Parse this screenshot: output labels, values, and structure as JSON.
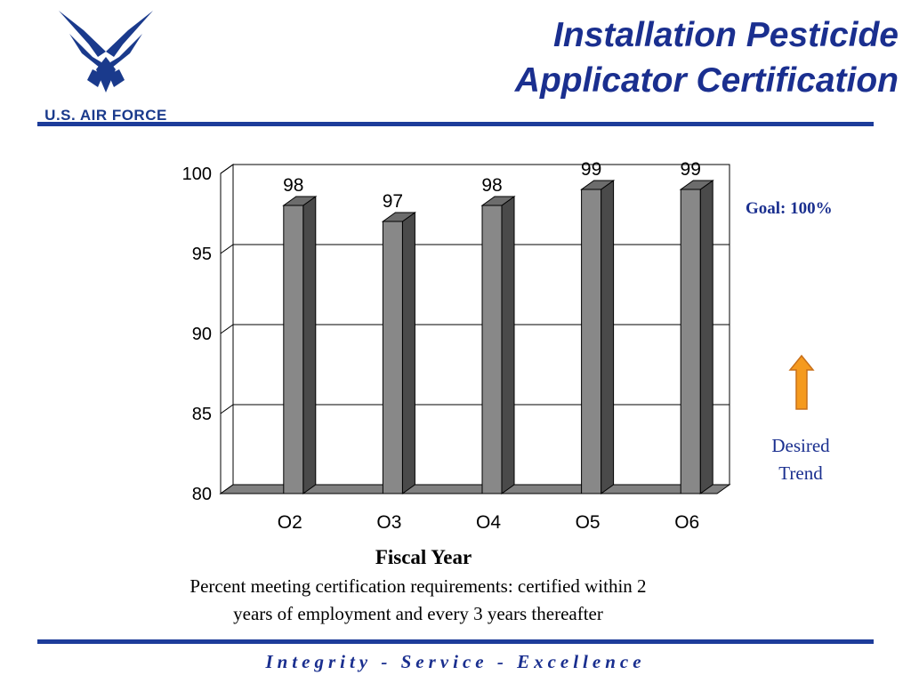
{
  "logo": {
    "text": "U.S. AIR FORCE",
    "icon": "air-force-wings-symbol",
    "color": "#1a3a8c"
  },
  "title": {
    "line1": "Installation Pesticide",
    "line2": "Applicator Certification"
  },
  "goal": {
    "label": "Goal:  100%"
  },
  "desired_trend": {
    "line1": "Desired",
    "line2": "Trend",
    "arrow_icon": "up-arrow-icon",
    "arrow_color": "#f59a1e"
  },
  "caption": {
    "line1": "Percent meeting certification requirements:  certified within 2",
    "line2": "years of employment and every 3 years thereafter"
  },
  "motto": "Integrity - Service - Excellence",
  "chart_data": {
    "type": "bar",
    "categories": [
      "O2",
      "O3",
      "O4",
      "O5",
      "O6"
    ],
    "values": [
      98,
      97,
      98,
      99,
      99
    ],
    "data_labels": [
      "98",
      "97",
      "98",
      "99",
      "99"
    ],
    "title": "",
    "xlabel": "Fiscal Year",
    "ylabel": "",
    "ylim": [
      80,
      100
    ],
    "yticks": [
      80,
      85,
      90,
      95,
      100
    ],
    "grid": true,
    "style": "3d",
    "bar_color": "#888888"
  }
}
